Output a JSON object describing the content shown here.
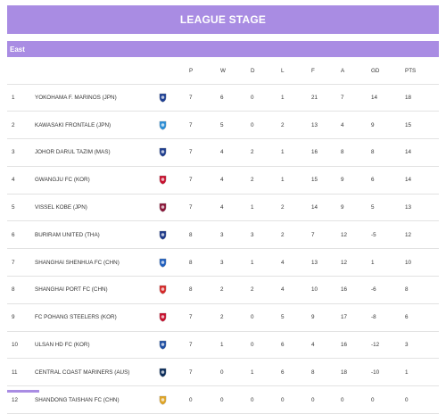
{
  "title": "LEAGUE STAGE",
  "group": "East",
  "headers": [
    "",
    "",
    "",
    "P",
    "W",
    "D",
    "L",
    "F",
    "A",
    "GD",
    "PTS"
  ],
  "rows": [
    {
      "pos": "1",
      "team": "YOKOHAMA F. MARINOS (JPN)",
      "p": "7",
      "w": "6",
      "d": "0",
      "l": "1",
      "f": "21",
      "a": "7",
      "gd": "14",
      "pts": "18",
      "crest": "#1c3f94"
    },
    {
      "pos": "2",
      "team": "KAWASAKI FRONTALE (JPN)",
      "p": "7",
      "w": "5",
      "d": "0",
      "l": "2",
      "f": "13",
      "a": "4",
      "gd": "9",
      "pts": "15",
      "crest": "#2b8ed6"
    },
    {
      "pos": "3",
      "team": "JOHOR DARUL TAZIM (MAS)",
      "p": "7",
      "w": "4",
      "d": "2",
      "l": "1",
      "f": "16",
      "a": "8",
      "gd": "8",
      "pts": "14",
      "crest": "#1f3e8f"
    },
    {
      "pos": "4",
      "team": "GWANGJU FC (KOR)",
      "p": "7",
      "w": "4",
      "d": "2",
      "l": "1",
      "f": "15",
      "a": "9",
      "gd": "6",
      "pts": "14",
      "crest": "#c8102e"
    },
    {
      "pos": "5",
      "team": "VISSEL KOBE (JPN)",
      "p": "7",
      "w": "4",
      "d": "1",
      "l": "2",
      "f": "14",
      "a": "9",
      "gd": "5",
      "pts": "13",
      "crest": "#8a1538"
    },
    {
      "pos": "6",
      "team": "BURIRAM UNITED (THA)",
      "p": "8",
      "w": "3",
      "d": "3",
      "l": "2",
      "f": "7",
      "a": "12",
      "gd": "-5",
      "pts": "12",
      "crest": "#1e3a8a"
    },
    {
      "pos": "7",
      "team": "SHANGHAI SHENHUA FC (CHN)",
      "p": "8",
      "w": "3",
      "d": "1",
      "l": "4",
      "f": "13",
      "a": "12",
      "gd": "1",
      "pts": "10",
      "crest": "#1f5fbf"
    },
    {
      "pos": "8",
      "team": "SHANGHAI PORT FC (CHN)",
      "p": "8",
      "w": "2",
      "d": "2",
      "l": "4",
      "f": "10",
      "a": "16",
      "gd": "-6",
      "pts": "8",
      "crest": "#d62828"
    },
    {
      "pos": "9",
      "team": "FC POHANG STEELERS (KOR)",
      "p": "7",
      "w": "2",
      "d": "0",
      "l": "5",
      "f": "9",
      "a": "17",
      "gd": "-8",
      "pts": "6",
      "crest": "#c8102e"
    },
    {
      "pos": "10",
      "team": "ULSAN HD FC (KOR)",
      "p": "7",
      "w": "1",
      "d": "0",
      "l": "6",
      "f": "4",
      "a": "16",
      "gd": "-12",
      "pts": "3",
      "crest": "#1e4fa3"
    },
    {
      "pos": "11",
      "team": "CENTRAL COAST MARINERS (AUS)",
      "p": "7",
      "w": "0",
      "d": "1",
      "l": "6",
      "f": "8",
      "a": "18",
      "gd": "-10",
      "pts": "1",
      "crest": "#0b2d5b"
    },
    {
      "pos": "12",
      "team": "SHANDONG TAISHAN FC (CHN)",
      "p": "0",
      "w": "0",
      "d": "0",
      "l": "0",
      "f": "0",
      "a": "0",
      "gd": "0",
      "pts": "0",
      "crest": "#e0a526"
    }
  ]
}
